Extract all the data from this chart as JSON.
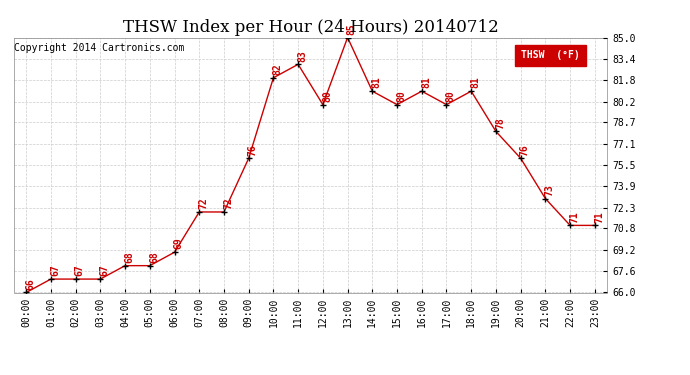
{
  "title": "THSW Index per Hour (24 Hours) 20140712",
  "copyright": "Copyright 2014 Cartronics.com",
  "legend_label": "THSW  (°F)",
  "hours": [
    0,
    1,
    2,
    3,
    4,
    5,
    6,
    7,
    8,
    9,
    10,
    11,
    12,
    13,
    14,
    15,
    16,
    17,
    18,
    19,
    20,
    21,
    22,
    23
  ],
  "hour_labels": [
    "00:00",
    "01:00",
    "02:00",
    "03:00",
    "04:00",
    "05:00",
    "06:00",
    "07:00",
    "08:00",
    "09:00",
    "10:00",
    "11:00",
    "12:00",
    "13:00",
    "14:00",
    "15:00",
    "16:00",
    "17:00",
    "18:00",
    "19:00",
    "20:00",
    "21:00",
    "22:00",
    "23:00"
  ],
  "values": [
    66,
    67,
    67,
    67,
    68,
    68,
    69,
    72,
    72,
    76,
    82,
    83,
    80,
    85,
    81,
    80,
    81,
    80,
    81,
    78,
    76,
    73,
    71,
    71
  ],
  "ylim_min": 66.0,
  "ylim_max": 85.0,
  "yticks": [
    66.0,
    67.6,
    69.2,
    70.8,
    72.3,
    73.9,
    75.5,
    77.1,
    78.7,
    80.2,
    81.8,
    83.4,
    85.0
  ],
  "line_color": "#cc0000",
  "marker_color": "#000000",
  "bg_color": "#ffffff",
  "grid_color": "#cccccc",
  "title_fontsize": 12,
  "tick_fontsize": 7,
  "annotation_fontsize": 7,
  "copyright_fontsize": 7,
  "legend_bg": "#cc0000",
  "legend_text_color": "#ffffff"
}
